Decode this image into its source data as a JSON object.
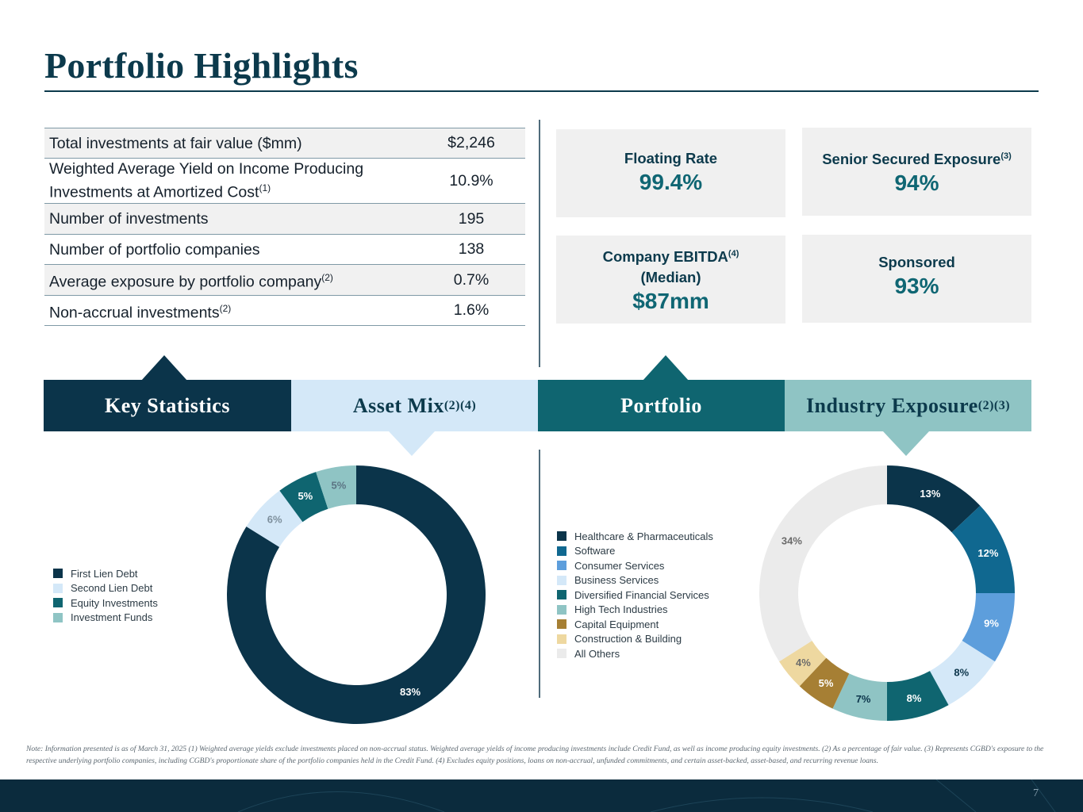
{
  "page": {
    "title": "Portfolio Highlights",
    "page_number": "7",
    "note": "Note: Information presented is as of March 31, 2025 (1) Weighted average yields exclude investments placed on non-accrual status. Weighted average yields of income producing investments include Credit Fund, as well as income producing equity investments. (2) As a percentage of fair value. (3) Represents CGBD's exposure to the respective underlying portfolio companies, including CGBD's proportionate share of the portfolio companies held in the Credit Fund. (4) Excludes equity positions, loans on non-accrual, unfunded commitments, and certain asset-backed, asset-based, and recurring revenue loans."
  },
  "key_statistics": {
    "rows": [
      {
        "label": "Total investments at fair value ($mm)",
        "sup": "",
        "value": "$2,246"
      },
      {
        "label": "Weighted Average Yield on Income Producing",
        "label2": "Investments at Amortized Cost",
        "sup": "(1)",
        "value": "10.9%"
      },
      {
        "label": "Number of investments",
        "sup": "",
        "value": "195"
      },
      {
        "label": "Number of portfolio companies",
        "sup": "",
        "value": "138"
      },
      {
        "label": "Average exposure by portfolio company",
        "sup": "(2)",
        "value": "0.7%"
      },
      {
        "label": "Non-accrual investments",
        "sup": "(2)",
        "value": "1.6%"
      }
    ]
  },
  "portfolio_metrics": {
    "floating_rate": {
      "label": "Floating Rate",
      "value": "99.4%"
    },
    "senior_secured": {
      "label": "Senior Secured Exposure",
      "sup": "(3)",
      "value": "94%"
    },
    "ebitda": {
      "label": "Company EBITDA",
      "sup": "(4)",
      "label2": "(Median)",
      "value": "$87mm"
    },
    "sponsored": {
      "label": "Sponsored",
      "value": "93%"
    }
  },
  "tabs": {
    "key_statistics": "Key Statistics",
    "asset_mix": "Asset Mix",
    "asset_mix_sup": "(2)(4)",
    "portfolio": "Portfolio",
    "industry_exposure": "Industry Exposure",
    "industry_exposure_sup": "(2)(3)"
  },
  "colors": {
    "navy": "#0b344a",
    "teal": "#0f6570",
    "light_blue": "#d4e8f8",
    "sea_green": "#8fc4c4"
  },
  "chart_data": [
    {
      "type": "pie",
      "donut": true,
      "title": "Asset Mix",
      "categories": [
        "First Lien Debt",
        "Second Lien Debt",
        "Equity Investments",
        "Investment Funds"
      ],
      "values": [
        83,
        6,
        5,
        5
      ],
      "labels": [
        "83%",
        "6%",
        "5%",
        "5%"
      ],
      "colors": [
        "#0b344a",
        "#d4e8f8",
        "#0f6570",
        "#8fc4c4"
      ],
      "legend": "left"
    },
    {
      "type": "pie",
      "donut": true,
      "title": "Industry Exposure",
      "categories": [
        "Healthcare & Pharmaceuticals",
        "Software",
        "Consumer Services",
        "Business Services",
        "Diversified Financial Services",
        "High Tech Industries",
        "Capital Equipment",
        "Construction & Building",
        "All Others"
      ],
      "values": [
        13,
        12,
        9,
        8,
        8,
        7,
        5,
        4,
        34
      ],
      "labels": [
        "13%",
        "12%",
        "9%",
        "8%",
        "8%",
        "7%",
        "5%",
        "4%",
        "34%"
      ],
      "colors": [
        "#0b344a",
        "#106890",
        "#5d9edc",
        "#d4e8f8",
        "#0f6570",
        "#8fc4c4",
        "#a67f34",
        "#eed8a0",
        "#ebebeb"
      ],
      "legend": "left"
    }
  ]
}
